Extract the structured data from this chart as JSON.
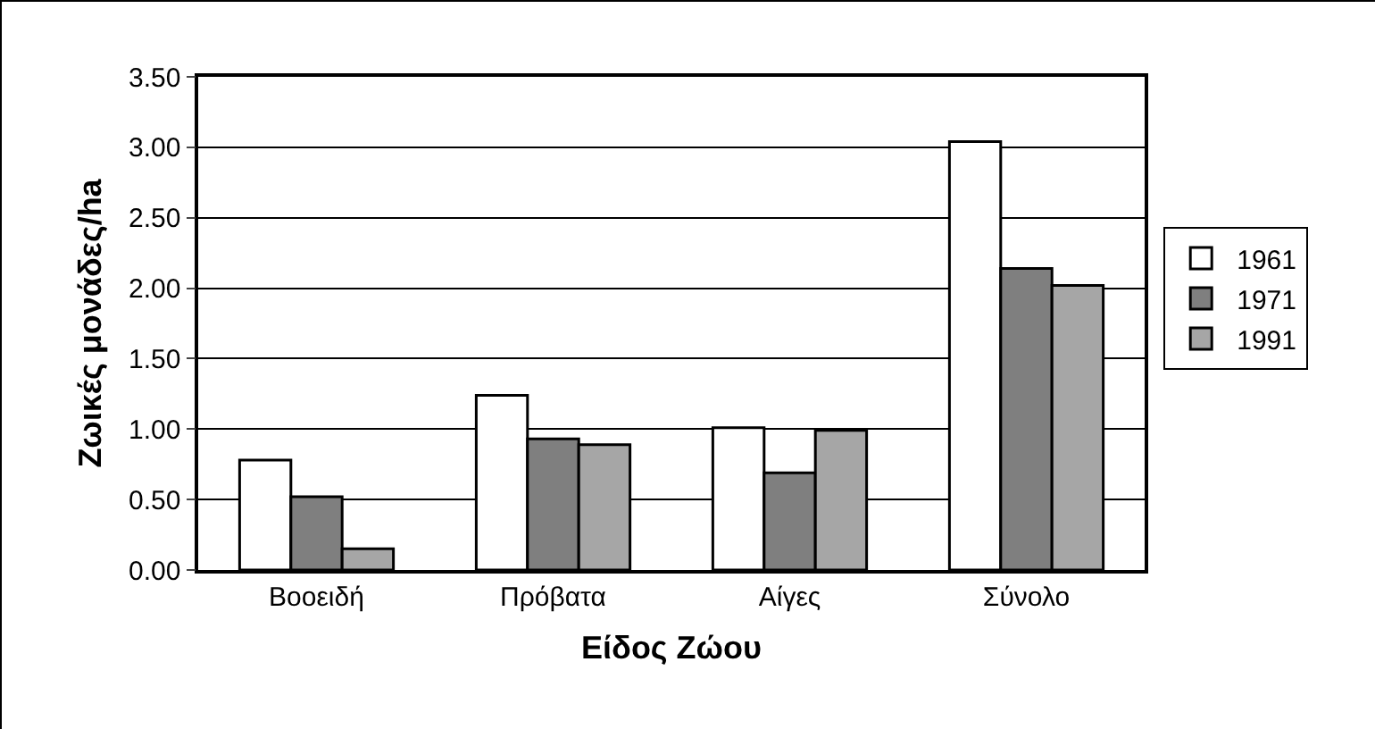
{
  "chart_data": {
    "type": "bar",
    "xlabel": "Είδος Ζώου",
    "ylabel": "Ζωικές μονάδες/ha",
    "categories": [
      "Βοοειδή",
      "Πρόβατα",
      "Αίγες",
      "Σύνολο"
    ],
    "series": [
      {
        "name": "1961",
        "color": "#ffffff",
        "values": [
          0.78,
          1.24,
          1.01,
          3.04
        ]
      },
      {
        "name": "1971",
        "color": "#7f7f7f",
        "values": [
          0.52,
          0.93,
          0.69,
          2.14
        ]
      },
      {
        "name": "1991",
        "color": "#a6a6a6",
        "values": [
          0.15,
          0.89,
          0.99,
          2.02
        ]
      }
    ],
    "ylim": [
      0,
      3.5
    ],
    "yticks": [
      {
        "value": 0,
        "label": "0.00"
      },
      {
        "value": 0.5,
        "label": "0.50"
      },
      {
        "value": 1,
        "label": "1.00"
      },
      {
        "value": 1.5,
        "label": "1.50"
      },
      {
        "value": 2,
        "label": "2.00"
      },
      {
        "value": 2.5,
        "label": "2.50"
      },
      {
        "value": 3,
        "label": "3.00"
      },
      {
        "value": 3.5,
        "label": "3.50"
      }
    ],
    "grid": "y",
    "legend": "right"
  }
}
